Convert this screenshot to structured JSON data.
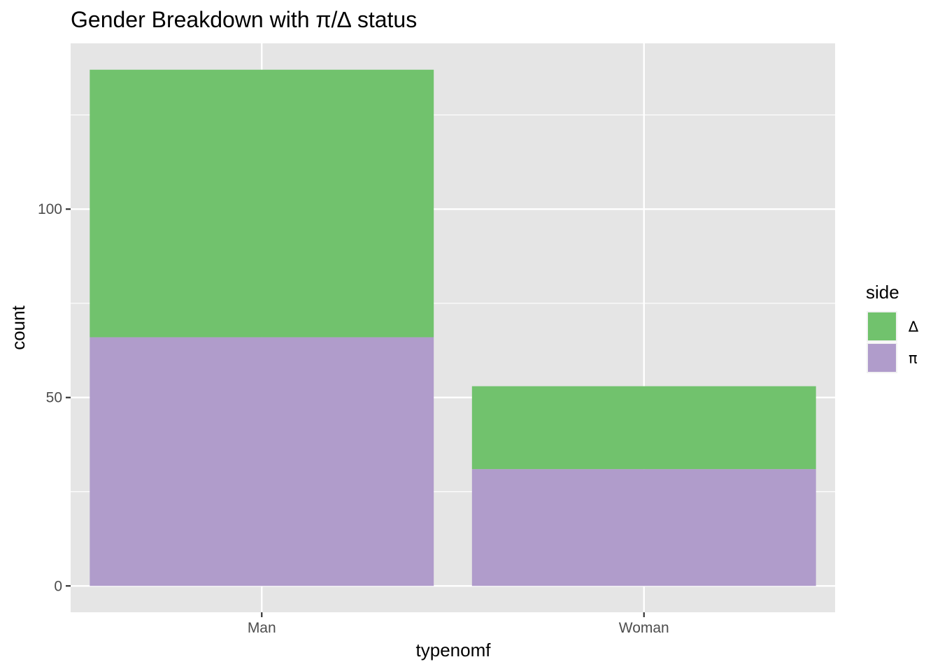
{
  "chart_data": {
    "type": "bar",
    "stacked": true,
    "title": "Gender Breakdown with π/∆ status",
    "xlabel": "typenomf",
    "ylabel": "count",
    "categories": [
      "Man",
      "Woman"
    ],
    "series": [
      {
        "name": "π",
        "color": "#b09ccb",
        "values": [
          66,
          31
        ]
      },
      {
        "name": "∆",
        "color": "#71c26d",
        "values": [
          71,
          22
        ]
      }
    ],
    "ylim": [
      -7,
      144
    ],
    "y_ticks": [
      0,
      50,
      100
    ],
    "y_tick_labels": [
      "0",
      "50",
      "100"
    ],
    "grid": true,
    "legend": {
      "title": "side",
      "position": "right",
      "entries": [
        {
          "label": "∆",
          "color": "#71c26d"
        },
        {
          "label": "π",
          "color": "#b09ccb"
        }
      ]
    },
    "panel_color": "#e5e5e5",
    "grid_color": "#ffffff"
  }
}
